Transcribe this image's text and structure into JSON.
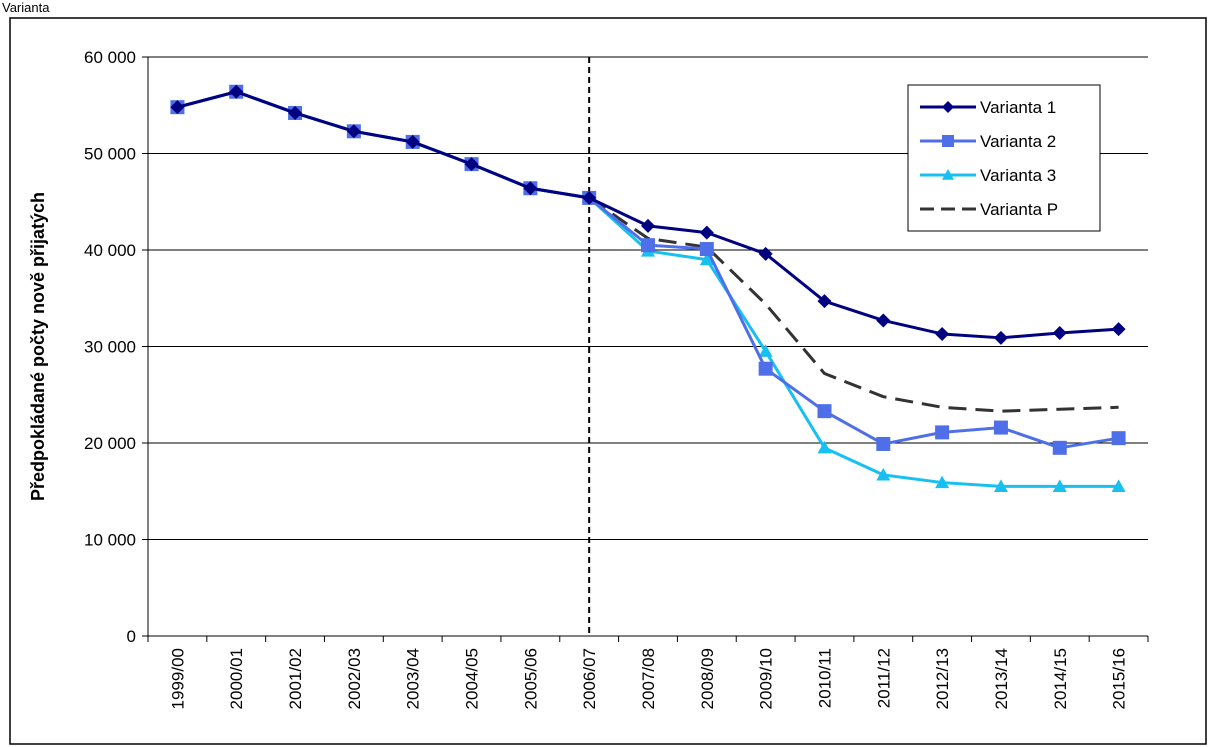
{
  "corner_label": "Varianta",
  "chart_data": {
    "type": "line",
    "title": "",
    "xlabel": "",
    "ylabel": "Předpokládané počty nově přijatých",
    "categories": [
      "1999/00",
      "2000/01",
      "2001/02",
      "2002/03",
      "2003/04",
      "2004/05",
      "2005/06",
      "2006/07",
      "2007/08",
      "2008/09",
      "2009/10",
      "2010/11",
      "2011/12",
      "2012/13",
      "2013/14",
      "2014/15",
      "2015/16"
    ],
    "ylim": [
      0,
      60000
    ],
    "yticks": [
      0,
      10000,
      20000,
      30000,
      40000,
      50000,
      60000
    ],
    "ytick_labels": [
      "0",
      "10 000",
      "20 000",
      "30 000",
      "40 000",
      "50 000",
      "60 000"
    ],
    "grid": true,
    "legend_position": "top-right",
    "vertical_marker": "2006/07",
    "series": [
      {
        "name": "Varianta 1",
        "color": "#000080",
        "marker": "diamond",
        "dash": "solid",
        "values": [
          54800,
          56400,
          54200,
          52300,
          51200,
          48900,
          46400,
          45400,
          42500,
          41800,
          39600,
          34700,
          32700,
          31300,
          30900,
          31400,
          31800
        ]
      },
      {
        "name": "Varianta 2",
        "color": "#4F6FE8",
        "marker": "square",
        "dash": "solid",
        "values": [
          54800,
          56400,
          54200,
          52300,
          51200,
          48900,
          46400,
          45400,
          40500,
          40100,
          27700,
          23300,
          19900,
          21100,
          21600,
          19500,
          20500
        ]
      },
      {
        "name": "Varianta 3",
        "color": "#17C0F0",
        "marker": "triangle",
        "dash": "solid",
        "values": [
          54800,
          56400,
          54200,
          52300,
          51200,
          48900,
          46400,
          45400,
          39900,
          39000,
          29500,
          19500,
          16700,
          15900,
          15500,
          15500,
          15500
        ]
      },
      {
        "name": "Varianta P",
        "color": "#333333",
        "marker": "none",
        "dash": "dashed",
        "values": [
          54800,
          56400,
          54200,
          52300,
          51200,
          48900,
          46400,
          45400,
          41200,
          40300,
          34400,
          27200,
          24800,
          23700,
          23300,
          23500,
          23700
        ]
      }
    ]
  }
}
